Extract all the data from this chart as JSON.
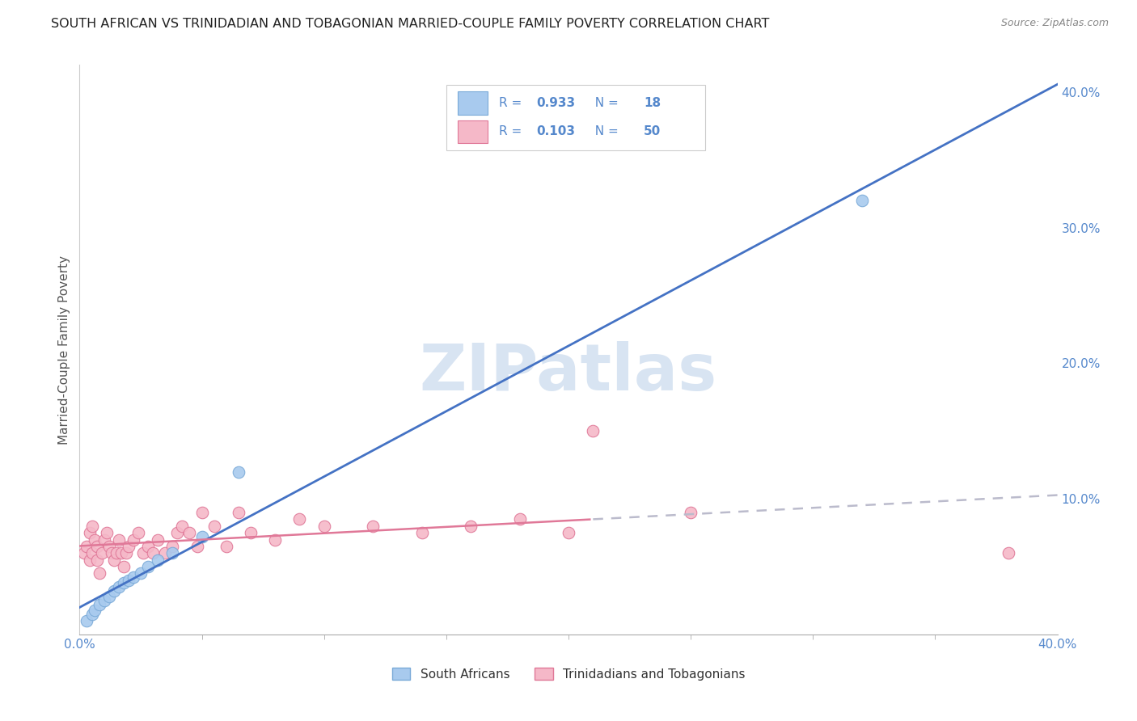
{
  "title": "SOUTH AFRICAN VS TRINIDADIAN AND TOBAGONIAN MARRIED-COUPLE FAMILY POVERTY CORRELATION CHART",
  "source": "Source: ZipAtlas.com",
  "ylabel": "Married-Couple Family Poverty",
  "xlim": [
    0.0,
    0.4
  ],
  "ylim": [
    0.0,
    0.42
  ],
  "xtick_positions": [
    0.0,
    0.4
  ],
  "xtick_labels": [
    "0.0%",
    "40.0%"
  ],
  "ytick_positions": [
    0.1,
    0.2,
    0.3,
    0.4
  ],
  "ytick_labels": [
    "10.0%",
    "20.0%",
    "30.0%",
    "40.0%"
  ],
  "sa_x": [
    0.003,
    0.005,
    0.006,
    0.008,
    0.01,
    0.012,
    0.014,
    0.016,
    0.018,
    0.02,
    0.022,
    0.025,
    0.028,
    0.032,
    0.038,
    0.05,
    0.065,
    0.32
  ],
  "sa_y": [
    0.01,
    0.015,
    0.018,
    0.022,
    0.025,
    0.028,
    0.032,
    0.035,
    0.038,
    0.04,
    0.042,
    0.045,
    0.05,
    0.055,
    0.06,
    0.072,
    0.12,
    0.32
  ],
  "tt_x": [
    0.002,
    0.003,
    0.004,
    0.004,
    0.005,
    0.005,
    0.006,
    0.007,
    0.007,
    0.008,
    0.009,
    0.01,
    0.011,
    0.012,
    0.013,
    0.014,
    0.015,
    0.016,
    0.017,
    0.018,
    0.019,
    0.02,
    0.022,
    0.024,
    0.026,
    0.028,
    0.03,
    0.032,
    0.035,
    0.038,
    0.04,
    0.042,
    0.045,
    0.048,
    0.05,
    0.055,
    0.06,
    0.065,
    0.07,
    0.08,
    0.09,
    0.1,
    0.12,
    0.14,
    0.16,
    0.18,
    0.2,
    0.25,
    0.21,
    0.38
  ],
  "tt_y": [
    0.06,
    0.065,
    0.055,
    0.075,
    0.08,
    0.06,
    0.07,
    0.065,
    0.055,
    0.045,
    0.06,
    0.07,
    0.075,
    0.065,
    0.06,
    0.055,
    0.06,
    0.07,
    0.06,
    0.05,
    0.06,
    0.065,
    0.07,
    0.075,
    0.06,
    0.065,
    0.06,
    0.07,
    0.06,
    0.065,
    0.075,
    0.08,
    0.075,
    0.065,
    0.09,
    0.08,
    0.065,
    0.09,
    0.075,
    0.07,
    0.085,
    0.08,
    0.08,
    0.075,
    0.08,
    0.085,
    0.075,
    0.09,
    0.15,
    0.06
  ],
  "sa_color": "#A8CAEE",
  "sa_edge_color": "#7AAAD8",
  "tt_color": "#F5B8C8",
  "tt_edge_color": "#E07898",
  "sa_R": 0.933,
  "sa_N": 18,
  "tt_R": 0.103,
  "tt_N": 50,
  "sa_line_color": "#4472C4",
  "tt_line_solid_color": "#E07898",
  "tt_line_dashed_color": "#BBBBCC",
  "background_color": "#FFFFFF",
  "watermark_text": "ZIPatlas",
  "watermark_color": "#D8E4F2",
  "grid_color": "#CCCCCC",
  "legend_text_color": "#5588CC",
  "legend_label_color": "#333333"
}
